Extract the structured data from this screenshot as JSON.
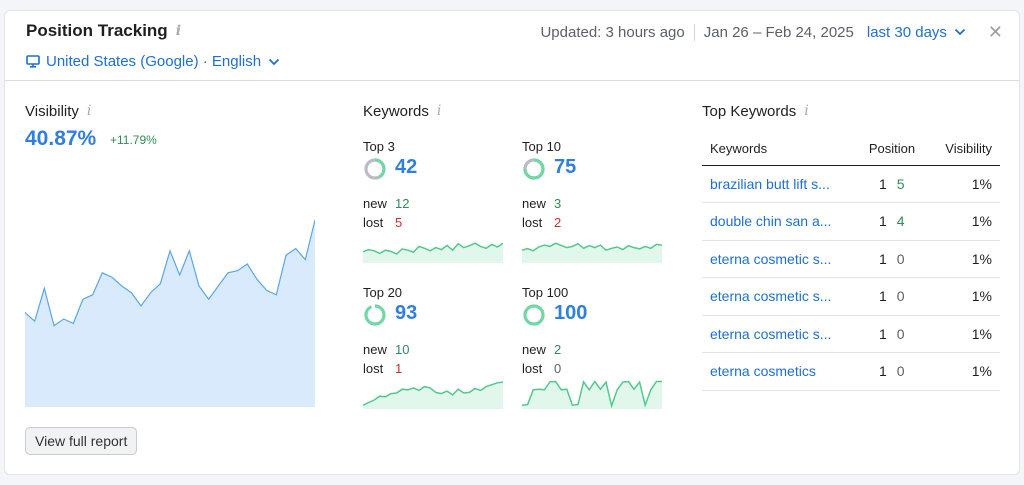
{
  "header": {
    "title": "Position Tracking",
    "info_glyph": "i",
    "location": "United States (Google) · English",
    "location_icon": "desktop-icon",
    "updated": "Updated: 3 hours ago",
    "date_range": "Jan 26 – Feb 24, 2025",
    "period": "last 30 days",
    "close_glyph": "✕"
  },
  "visibility": {
    "title": "Visibility",
    "value": "40.87%",
    "delta": "+11.79%",
    "trend": [
      0.43,
      0.39,
      0.54,
      0.37,
      0.4,
      0.38,
      0.49,
      0.51,
      0.61,
      0.59,
      0.55,
      0.52,
      0.46,
      0.52,
      0.56,
      0.71,
      0.6,
      0.71,
      0.55,
      0.49,
      0.55,
      0.61,
      0.62,
      0.65,
      0.58,
      0.53,
      0.51,
      0.69,
      0.72,
      0.67,
      0.85
    ],
    "fill_color": "#d8eafc",
    "line_color": "#5aa6e8",
    "button": "View full report"
  },
  "keywords": {
    "title": "Keywords",
    "new_label": "new",
    "lost_label": "lost",
    "boxes": [
      {
        "label": "Top 3",
        "value": "42",
        "new": "12",
        "lost": "5",
        "lost_color": "red",
        "ring": 0.42,
        "ring_color": "#b9bcc3",
        "trend": [
          0.35,
          0.42,
          0.38,
          0.3,
          0.4,
          0.36,
          0.28,
          0.44,
          0.4,
          0.34,
          0.52,
          0.46,
          0.38,
          0.48,
          0.42,
          0.55,
          0.4,
          0.6,
          0.48,
          0.54,
          0.62,
          0.52,
          0.46,
          0.58,
          0.5,
          0.62
        ]
      },
      {
        "label": "Top 10",
        "value": "75",
        "new": "3",
        "lost": "2",
        "lost_color": "red",
        "ring": 0.75,
        "ring_color": "#b9bcc3",
        "trend": [
          0.4,
          0.45,
          0.38,
          0.5,
          0.56,
          0.52,
          0.62,
          0.55,
          0.48,
          0.52,
          0.6,
          0.46,
          0.54,
          0.48,
          0.56,
          0.4,
          0.46,
          0.5,
          0.42,
          0.54,
          0.48,
          0.44,
          0.52,
          0.46,
          0.58,
          0.56
        ]
      },
      {
        "label": "Top 20",
        "value": "93",
        "new": "10",
        "lost": "1",
        "lost_color": "red",
        "ring": 0.93,
        "ring_color": "#ffffff",
        "trend": [
          0.12,
          0.2,
          0.28,
          0.4,
          0.38,
          0.48,
          0.5,
          0.62,
          0.6,
          0.66,
          0.58,
          0.7,
          0.66,
          0.52,
          0.48,
          0.56,
          0.44,
          0.62,
          0.5,
          0.52,
          0.64,
          0.58,
          0.7,
          0.76,
          0.82,
          0.84
        ]
      },
      {
        "label": "Top 100",
        "value": "100",
        "new": "2",
        "lost": "0",
        "lost_color": "gray",
        "ring": 1.0,
        "ring_color": "#ffffff",
        "trend": [
          0.12,
          0.14,
          0.6,
          0.62,
          0.6,
          0.85,
          0.86,
          0.6,
          0.62,
          0.12,
          0.14,
          0.85,
          0.6,
          0.86,
          0.62,
          0.84,
          0.1,
          0.6,
          0.84,
          0.86,
          0.62,
          0.84,
          0.12,
          0.6,
          0.86,
          0.86
        ]
      }
    ],
    "ring_fill_color": "#6fd8a5",
    "spark_line_color": "#52c98c",
    "spark_fill_color": "#e2f7ec"
  },
  "top_keywords": {
    "title": "Top Keywords",
    "columns": [
      "Keywords",
      "Position",
      "Visibility"
    ],
    "rows": [
      {
        "keyword": "brazilian butt lift s...",
        "position": "1",
        "change": "5",
        "change_color": "green",
        "visibility": "1%"
      },
      {
        "keyword": "double chin san a...",
        "position": "1",
        "change": "4",
        "change_color": "green",
        "visibility": "1%"
      },
      {
        "keyword": "eterna cosmetic s...",
        "position": "1",
        "change": "0",
        "change_color": "gray",
        "visibility": "1%"
      },
      {
        "keyword": "eterna cosmetic s...",
        "position": "1",
        "change": "0",
        "change_color": "gray",
        "visibility": "1%"
      },
      {
        "keyword": "eterna cosmetic s...",
        "position": "1",
        "change": "0",
        "change_color": "gray",
        "visibility": "1%"
      },
      {
        "keyword": "eterna cosmetics",
        "position": "1",
        "change": "0",
        "change_color": "gray",
        "visibility": "1%"
      }
    ]
  }
}
